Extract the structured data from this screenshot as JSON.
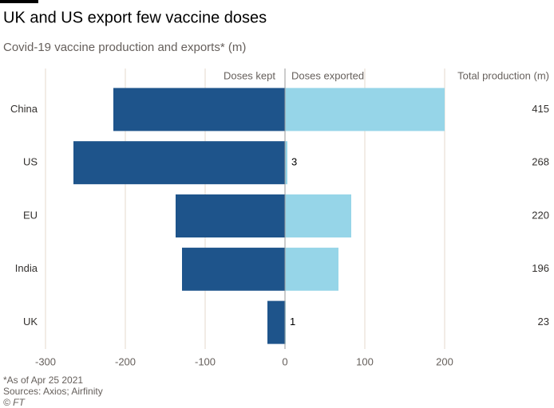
{
  "chart_data": {
    "type": "diverging_bar",
    "title": "UK and US export few vaccine doses",
    "subtitle": "Covid-19 vaccine production and exports* (m)",
    "categories": [
      "China",
      "US",
      "EU",
      "India",
      "UK"
    ],
    "series": [
      {
        "name": "Doses kept",
        "color": "#1e548b",
        "values": [
          -215,
          -265,
          -137,
          -129,
          -22
        ]
      },
      {
        "name": "Doses exported",
        "color": "#96d5e8",
        "values": [
          200,
          3,
          83,
          67,
          1
        ],
        "value_labels": [
          null,
          "3",
          null,
          null,
          "1"
        ]
      }
    ],
    "total_production": {
      "label": "Total production (m)",
      "values": [
        415,
        268,
        220,
        196,
        23
      ]
    },
    "xlim": [
      -300,
      200
    ],
    "xticks": [
      -300,
      -200,
      -100,
      0,
      100,
      200
    ],
    "grid": true,
    "notes": [
      "*As of Apr 25 2021",
      "Sources: Axios; Airfinity",
      "© FT"
    ]
  }
}
